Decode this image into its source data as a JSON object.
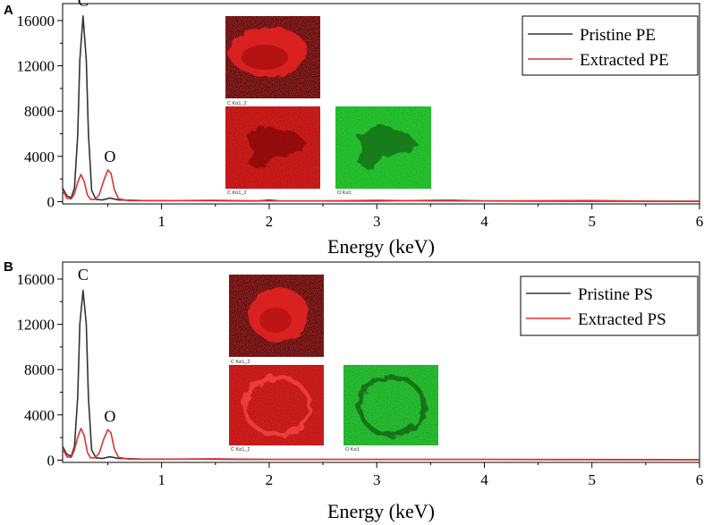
{
  "panels": [
    {
      "label": "A",
      "chart_data": {
        "type": "line",
        "title": "",
        "xlabel": "Energy (keV)",
        "ylabel": "",
        "xlim": [
          0.08,
          6
        ],
        "ylim": [
          -200,
          17500
        ],
        "xticks": [
          1,
          2,
          3,
          4,
          5,
          6
        ],
        "yticks": [
          0,
          4000,
          8000,
          12000,
          16000
        ],
        "legend_position": "top-right",
        "series": [
          {
            "name": "Pristine PE",
            "color": "#333333",
            "points": [
              [
                0.08,
                1200
              ],
              [
                0.12,
                500
              ],
              [
                0.16,
                350
              ],
              [
                0.19,
                1200
              ],
              [
                0.22,
                5800
              ],
              [
                0.24,
                12500
              ],
              [
                0.27,
                16400
              ],
              [
                0.3,
                12500
              ],
              [
                0.32,
                6000
              ],
              [
                0.35,
                1000
              ],
              [
                0.39,
                200
              ],
              [
                0.45,
                150
              ],
              [
                0.52,
                320
              ],
              [
                0.6,
                150
              ],
              [
                0.8,
                100
              ],
              [
                1.5,
                80
              ],
              [
                1.9,
                60
              ],
              [
                2.0,
                140
              ],
              [
                2.1,
                60
              ],
              [
                3,
                60
              ],
              [
                3.7,
                120
              ],
              [
                4,
                60
              ],
              [
                5,
                40
              ],
              [
                6,
                30
              ]
            ]
          },
          {
            "name": "Extracted PE",
            "color": "#dd3333",
            "points": [
              [
                0.08,
                1000
              ],
              [
                0.12,
                300
              ],
              [
                0.16,
                250
              ],
              [
                0.19,
                700
              ],
              [
                0.22,
                1700
              ],
              [
                0.25,
                2400
              ],
              [
                0.28,
                1800
              ],
              [
                0.31,
                600
              ],
              [
                0.34,
                200
              ],
              [
                0.38,
                200
              ],
              [
                0.42,
                600
              ],
              [
                0.46,
                1800
              ],
              [
                0.5,
                2800
              ],
              [
                0.53,
                2500
              ],
              [
                0.56,
                1100
              ],
              [
                0.6,
                250
              ],
              [
                0.7,
                80
              ],
              [
                1,
                80
              ],
              [
                1.5,
                120
              ],
              [
                2,
                60
              ],
              [
                2.5,
                60
              ],
              [
                3,
                120
              ],
              [
                3.5,
                60
              ],
              [
                4,
                60
              ],
              [
                5,
                100
              ],
              [
                5.5,
                40
              ],
              [
                6,
                30
              ]
            ]
          }
        ],
        "annotations": [
          {
            "text": "C",
            "x": 0.27,
            "y": 17300
          },
          {
            "text": "O",
            "x": 0.52,
            "y": 3500
          }
        ]
      },
      "insets": [
        {
          "caption": "C Kα1_2",
          "kind": "red-particle"
        },
        {
          "caption": "C Kα1_2",
          "kind": "red-noise"
        },
        {
          "caption": "O Kα1",
          "kind": "green-noise"
        }
      ]
    },
    {
      "label": "B",
      "chart_data": {
        "type": "line",
        "title": "",
        "xlabel": "Energy (keV)",
        "ylabel": "",
        "xlim": [
          0.08,
          6
        ],
        "ylim": [
          -200,
          17500
        ],
        "xticks": [
          1,
          2,
          3,
          4,
          5,
          6
        ],
        "yticks": [
          0,
          4000,
          8000,
          12000,
          16000
        ],
        "legend_position": "top-right",
        "series": [
          {
            "name": "Pristine PS",
            "color": "#333333",
            "points": [
              [
                0.08,
                1200
              ],
              [
                0.12,
                500
              ],
              [
                0.16,
                350
              ],
              [
                0.19,
                1200
              ],
              [
                0.22,
                5500
              ],
              [
                0.24,
                12000
              ],
              [
                0.27,
                15000
              ],
              [
                0.3,
                12000
              ],
              [
                0.32,
                5500
              ],
              [
                0.35,
                900
              ],
              [
                0.39,
                200
              ],
              [
                0.45,
                150
              ],
              [
                0.52,
                300
              ],
              [
                0.6,
                150
              ],
              [
                0.8,
                100
              ],
              [
                1.5,
                80
              ],
              [
                2,
                60
              ],
              [
                3,
                60
              ],
              [
                4,
                60
              ],
              [
                5,
                40
              ],
              [
                6,
                30
              ]
            ]
          },
          {
            "name": "Extracted PS",
            "color": "#dd3333",
            "points": [
              [
                0.08,
                1000
              ],
              [
                0.12,
                300
              ],
              [
                0.16,
                250
              ],
              [
                0.19,
                900
              ],
              [
                0.22,
                2000
              ],
              [
                0.25,
                2800
              ],
              [
                0.28,
                2200
              ],
              [
                0.31,
                700
              ],
              [
                0.34,
                200
              ],
              [
                0.38,
                200
              ],
              [
                0.42,
                600
              ],
              [
                0.46,
                1800
              ],
              [
                0.5,
                2700
              ],
              [
                0.53,
                2400
              ],
              [
                0.56,
                1000
              ],
              [
                0.6,
                250
              ],
              [
                0.7,
                80
              ],
              [
                1,
                80
              ],
              [
                1.5,
                120
              ],
              [
                2,
                60
              ],
              [
                3,
                60
              ],
              [
                4,
                60
              ],
              [
                5,
                60
              ],
              [
                6,
                30
              ]
            ]
          }
        ],
        "annotations": [
          {
            "text": "C",
            "x": 0.27,
            "y": 15900
          },
          {
            "text": "O",
            "x": 0.52,
            "y": 3400
          }
        ]
      },
      "insets": [
        {
          "caption": "C Kα1_2",
          "kind": "red-particle"
        },
        {
          "caption": "C Kα1_2",
          "kind": "red-ring"
        },
        {
          "caption": "O Kα1",
          "kind": "green-ring"
        }
      ]
    }
  ]
}
